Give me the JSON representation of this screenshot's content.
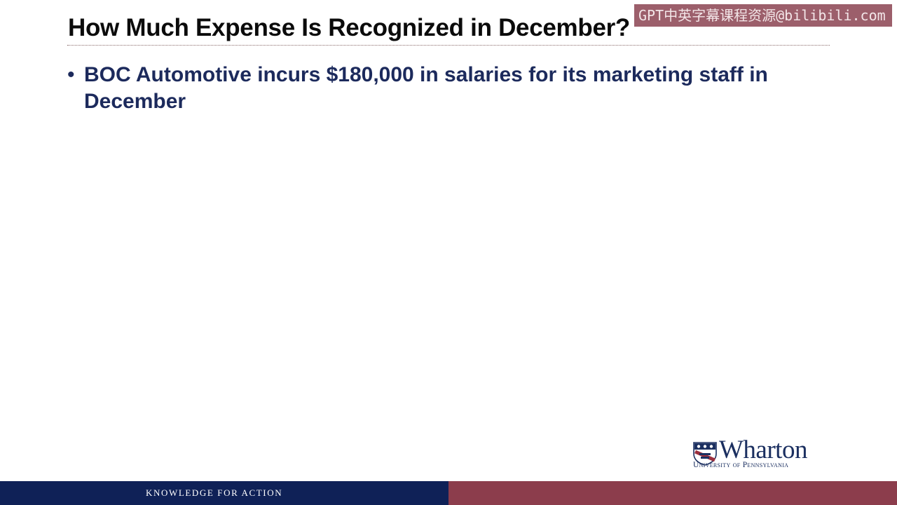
{
  "slide": {
    "title": "How Much Expense Is Recognized in December?",
    "bullets": [
      {
        "marker": "•",
        "text": "BOC Automotive incurs $180,000 in salaries for its marketing staff in December"
      }
    ]
  },
  "watermark": {
    "text": "GPT中英字幕课程资源@bilibili.com"
  },
  "logo": {
    "wordmark": "Wharton",
    "subtitle": "University of Pennsylvania"
  },
  "footer": {
    "tagline": "KNOWLEDGE FOR ACTION"
  },
  "colors": {
    "footer_navy": "#0f2157",
    "footer_maroon": "#8c3d4c",
    "bullet_text": "#1c2a5c",
    "title_text": "#0b0b0b",
    "watermark_bg": "#803241"
  }
}
